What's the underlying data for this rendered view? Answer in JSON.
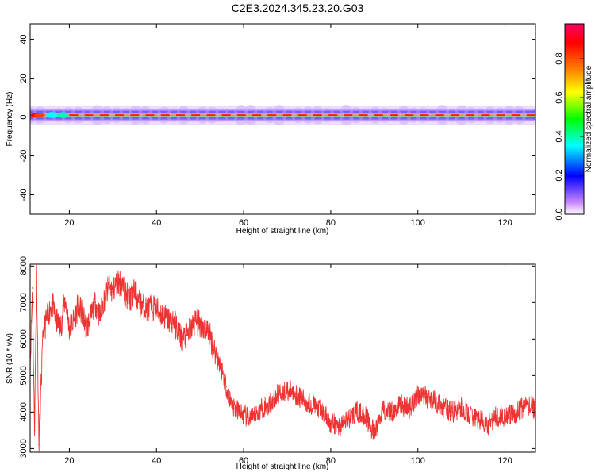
{
  "figure_title": "C2E3.2024.345.23.20.G03",
  "chart_data": [
    {
      "type": "heatmap",
      "xlabel": "Height of straight line (km)",
      "ylabel": "Frequency (Hz)",
      "xlim": [
        11,
        127
      ],
      "ylim": [
        -50,
        48
      ],
      "xticks": [
        20,
        40,
        60,
        80,
        100,
        120
      ],
      "yticks": [
        -40,
        -20,
        0,
        20,
        40
      ],
      "grid": false,
      "band": {
        "center_hz": 1,
        "core_halfwidth_hz": 1,
        "outer_halfwidth_hz": 5,
        "peak_strength_note": "strongest near 12-14 km"
      },
      "colorbar": {
        "label": "Normalized spectral amplitude",
        "range": [
          0.0,
          0.98
        ],
        "ticks": [
          0.0,
          0.2,
          0.4,
          0.6,
          0.8
        ],
        "tick_labels": [
          "0.0",
          "0.2",
          "0.4",
          "0.6",
          "0.8"
        ],
        "colors": [
          "#ffffff",
          "#cc88ff",
          "#0000ff",
          "#00ffff",
          "#00ff00",
          "#ffff00",
          "#ff8000",
          "#ff0000",
          "#ff0066"
        ]
      }
    },
    {
      "type": "line",
      "xlabel": "Height of straight line (km)",
      "ylabel": "SNR (10 * v/v)",
      "xlim": [
        11,
        127
      ],
      "ylim": [
        2900,
        8050
      ],
      "xticks": [
        20,
        40,
        60,
        80,
        100,
        120
      ],
      "yticks": [
        3000,
        4000,
        5000,
        6000,
        7000,
        8000
      ],
      "grid": false,
      "color": "#ee3333",
      "series": [
        {
          "x": [
            11,
            11.5,
            12,
            12.5,
            13,
            14,
            15,
            16,
            17,
            18,
            19,
            20,
            21,
            22,
            23,
            24,
            25,
            26,
            27,
            28,
            29,
            30,
            31,
            32,
            33,
            34,
            35,
            36,
            37,
            38,
            39,
            40,
            41,
            42,
            43,
            44,
            45,
            46,
            47,
            48,
            49,
            50,
            51,
            52,
            53,
            54,
            55,
            56,
            57,
            58,
            59,
            60,
            62,
            64,
            66,
            68,
            70,
            72,
            74,
            76,
            78,
            80,
            82,
            84,
            86,
            88,
            90,
            92,
            94,
            96,
            98,
            100,
            102,
            104,
            106,
            108,
            110,
            112,
            114,
            116,
            118,
            120,
            122,
            124,
            126,
            127
          ],
          "y": [
            5200,
            7400,
            3500,
            7800,
            3100,
            6200,
            6600,
            7000,
            6500,
            6300,
            7100,
            6300,
            6500,
            6900,
            6700,
            6300,
            6600,
            7000,
            6600,
            7100,
            7400,
            7300,
            7600,
            7500,
            7200,
            7100,
            7300,
            7000,
            6900,
            6800,
            6900,
            6800,
            6700,
            6600,
            6500,
            6500,
            6200,
            6000,
            6100,
            6300,
            6500,
            6400,
            6300,
            6200,
            5800,
            5500,
            5200,
            4700,
            4300,
            4100,
            4000,
            3900,
            3800,
            4100,
            4200,
            4500,
            4600,
            4500,
            4300,
            4200,
            4000,
            3700,
            3600,
            3800,
            4000,
            3900,
            3400,
            4100,
            4000,
            4200,
            4100,
            4500,
            4400,
            4300,
            4100,
            4000,
            4100,
            3900,
            3800,
            3600,
            3900,
            3900,
            3900,
            4100,
            4200,
            4000
          ]
        }
      ]
    }
  ]
}
